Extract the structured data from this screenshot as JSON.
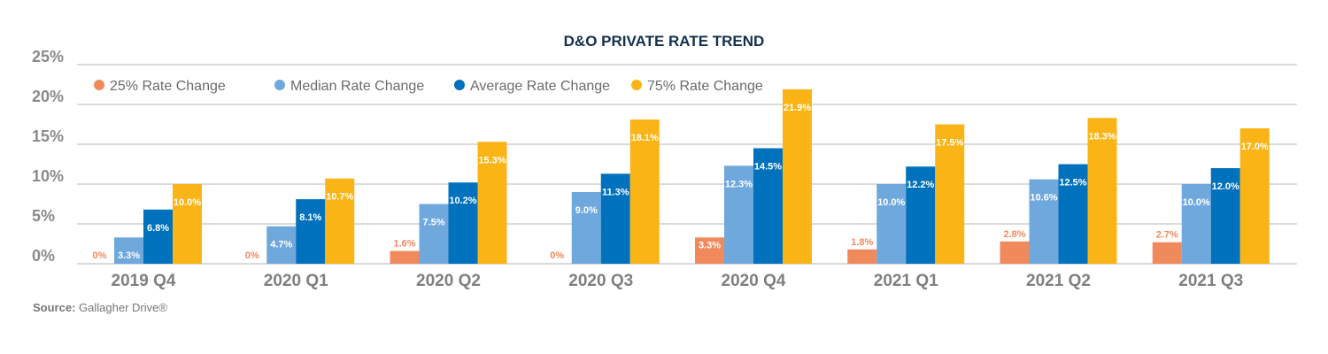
{
  "chart_data": {
    "type": "bar",
    "title": "D&O PRIVATE RATE TREND",
    "xlabel": "",
    "ylabel": "",
    "ylim": [
      0,
      25
    ],
    "yticks": [
      "0%",
      "5%",
      "10%",
      "15%",
      "20%",
      "25%"
    ],
    "ytick_values": [
      0,
      5,
      10,
      15,
      20,
      25
    ],
    "grid": true,
    "legend_position": "top-left",
    "categories": [
      "2019 Q4",
      "2020 Q1",
      "2020 Q2",
      "2020 Q3",
      "2020 Q4",
      "2021 Q1",
      "2021 Q2",
      "2021 Q3"
    ],
    "series": [
      {
        "name": "25% Rate Change",
        "color": "#f08a5d",
        "label_color": "#f08a5d",
        "values": [
          0,
          0,
          1.6,
          0,
          3.3,
          1.8,
          2.8,
          2.7
        ],
        "labels": [
          "0%",
          "0%",
          "1.6%",
          "0%",
          "3.3%",
          "1.8%",
          "2.8%",
          "2.7%"
        ]
      },
      {
        "name": "Median Rate Change",
        "color": "#6fa8dc",
        "label_color": "#ffffff",
        "values": [
          3.3,
          4.7,
          7.5,
          9.0,
          12.3,
          10.0,
          10.6,
          10.0
        ],
        "labels": [
          "3.3%",
          "4.7%",
          "7.5%",
          "9.0%",
          "12.3%",
          "10.0%",
          "10.6%",
          "10.0%"
        ]
      },
      {
        "name": "Average Rate Change",
        "color": "#0071bc",
        "label_color": "#ffffff",
        "values": [
          6.8,
          8.1,
          10.2,
          11.3,
          14.5,
          12.2,
          12.5,
          12.0
        ],
        "labels": [
          "6.8%",
          "8.1%",
          "10.2%",
          "11.3%",
          "14.5%",
          "12.2%",
          "12.5%",
          "12.0%"
        ]
      },
      {
        "name": "75% Rate Change",
        "color": "#fbb415",
        "label_color": "#ffffff",
        "values": [
          10.0,
          10.7,
          15.3,
          18.1,
          21.9,
          17.5,
          18.3,
          17.0
        ],
        "labels": [
          "10.0%",
          "10.7%",
          "15.3%",
          "18.1%",
          "21.9%",
          "17.5%",
          "18.3%",
          "17.0%"
        ]
      }
    ]
  },
  "source": {
    "label": "Source:",
    "text": "Gallagher Drive®"
  }
}
